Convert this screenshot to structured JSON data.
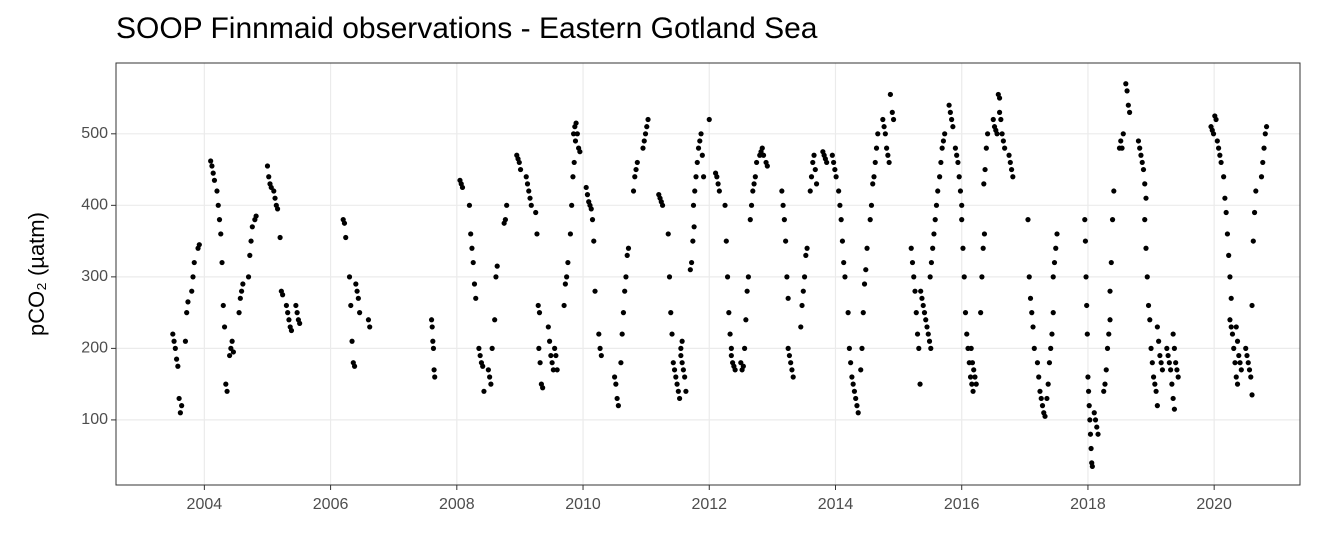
{
  "chart_data": {
    "type": "scatter",
    "title": "SOOP Finnmaid observations - Eastern Gotland Sea",
    "y_label": "pCO₂ (µatm)",
    "color": "#000000",
    "grid": true,
    "xlim": [
      2002.6,
      2021.36
    ],
    "xticks": [
      2004,
      2006,
      2008,
      2010,
      2012,
      2014,
      2016,
      2018,
      2020
    ],
    "ylim": [
      9,
      599
    ],
    "yticks": [
      100,
      200,
      300,
      400,
      500
    ],
    "x": [
      2003.5,
      2003.52,
      2003.54,
      2003.56,
      2003.58,
      2003.6,
      2003.62,
      2003.64,
      2003.7,
      2003.72,
      2003.74,
      2003.8,
      2003.82,
      2003.84,
      2003.9,
      2003.92,
      2004.1,
      2004.12,
      2004.14,
      2004.16,
      2004.2,
      2004.22,
      2004.24,
      2004.26,
      2004.28,
      2004.3,
      2004.32,
      2004.34,
      2004.36,
      2004.4,
      2004.42,
      2004.44,
      2004.46,
      2004.55,
      2004.57,
      2004.59,
      2004.61,
      2004.7,
      2004.72,
      2004.74,
      2004.76,
      2004.8,
      2004.82,
      2005.0,
      2005.02,
      2005.04,
      2005.06,
      2005.1,
      2005.12,
      2005.14,
      2005.16,
      2005.2,
      2005.22,
      2005.24,
      2005.3,
      2005.32,
      2005.34,
      2005.36,
      2005.38,
      2005.45,
      2005.47,
      2005.49,
      2005.51,
      2006.2,
      2006.22,
      2006.24,
      2006.3,
      2006.32,
      2006.34,
      2006.36,
      2006.38,
      2006.4,
      2006.42,
      2006.44,
      2006.46,
      2006.6,
      2006.62,
      2007.6,
      2007.61,
      2007.62,
      2007.63,
      2007.64,
      2007.65,
      2008.05,
      2008.07,
      2008.09,
      2008.2,
      2008.22,
      2008.24,
      2008.26,
      2008.28,
      2008.3,
      2008.35,
      2008.37,
      2008.39,
      2008.41,
      2008.43,
      2008.5,
      2008.52,
      2008.54,
      2008.56,
      2008.6,
      2008.62,
      2008.64,
      2008.75,
      2008.77,
      2008.79,
      2008.95,
      2008.97,
      2008.99,
      2009.01,
      2009.1,
      2009.12,
      2009.14,
      2009.16,
      2009.18,
      2009.25,
      2009.27,
      2009.29,
      2009.31,
      2009.3,
      2009.32,
      2009.34,
      2009.36,
      2009.45,
      2009.47,
      2009.49,
      2009.51,
      2009.53,
      2009.55,
      2009.57,
      2009.59,
      2009.7,
      2009.72,
      2009.74,
      2009.76,
      2009.8,
      2009.82,
      2009.84,
      2009.86,
      2009.88,
      2009.85,
      2009.87,
      2009.89,
      2009.91,
      2009.93,
      2009.95,
      2010.05,
      2010.07,
      2010.09,
      2010.11,
      2010.13,
      2010.15,
      2010.17,
      2010.19,
      2010.25,
      2010.27,
      2010.29,
      2010.5,
      2010.52,
      2010.54,
      2010.56,
      2010.6,
      2010.62,
      2010.64,
      2010.66,
      2010.68,
      2010.7,
      2010.72,
      2010.8,
      2010.82,
      2010.84,
      2010.86,
      2010.95,
      2010.97,
      2010.99,
      2011.01,
      2011.03,
      2011.2,
      2011.22,
      2011.24,
      2011.26,
      2011.35,
      2011.37,
      2011.39,
      2011.41,
      2011.43,
      2011.45,
      2011.47,
      2011.49,
      2011.51,
      2011.53,
      2011.55,
      2011.57,
      2011.55,
      2011.57,
      2011.59,
      2011.61,
      2011.63,
      2011.7,
      2011.72,
      2011.74,
      2011.76,
      2011.75,
      2011.77,
      2011.79,
      2011.81,
      2011.83,
      2011.85,
      2011.87,
      2011.89,
      2011.91,
      2012.0,
      2012.1,
      2012.12,
      2012.14,
      2012.16,
      2012.25,
      2012.27,
      2012.29,
      2012.31,
      2012.33,
      2012.35,
      2012.35,
      2012.37,
      2012.39,
      2012.41,
      2012.5,
      2012.52,
      2012.54,
      2012.56,
      2012.58,
      2012.6,
      2012.62,
      2012.65,
      2012.67,
      2012.69,
      2012.71,
      2012.73,
      2012.75,
      2012.8,
      2012.82,
      2012.84,
      2012.86,
      2012.9,
      2012.92,
      2013.15,
      2013.17,
      2013.19,
      2013.21,
      2013.23,
      2013.25,
      2013.25,
      2013.27,
      2013.29,
      2013.31,
      2013.33,
      2013.45,
      2013.47,
      2013.49,
      2013.51,
      2013.53,
      2013.55,
      2013.6,
      2013.62,
      2013.64,
      2013.66,
      2013.68,
      2013.7,
      2013.8,
      2013.82,
      2013.84,
      2013.86,
      2013.95,
      2013.97,
      2013.99,
      2014.01,
      2014.05,
      2014.07,
      2014.09,
      2014.11,
      2014.13,
      2014.15,
      2014.2,
      2014.22,
      2014.24,
      2014.26,
      2014.28,
      2014.3,
      2014.32,
      2014.34,
      2014.36,
      2014.4,
      2014.42,
      2014.44,
      2014.46,
      2014.48,
      2014.5,
      2014.55,
      2014.57,
      2014.59,
      2014.61,
      2014.63,
      2014.65,
      2014.67,
      2014.75,
      2014.77,
      2014.79,
      2014.81,
      2014.83,
      2014.85,
      2014.87,
      2014.9,
      2014.92,
      2015.2,
      2015.22,
      2015.24,
      2015.26,
      2015.28,
      2015.3,
      2015.32,
      2015.34,
      2015.35,
      2015.37,
      2015.39,
      2015.41,
      2015.43,
      2015.45,
      2015.47,
      2015.49,
      2015.51,
      2015.5,
      2015.52,
      2015.54,
      2015.56,
      2015.58,
      2015.6,
      2015.62,
      2015.65,
      2015.67,
      2015.69,
      2015.71,
      2015.73,
      2015.8,
      2015.82,
      2015.84,
      2015.86,
      2015.9,
      2015.92,
      2015.94,
      2015.96,
      2015.98,
      2016.0,
      2016.0,
      2016.02,
      2016.04,
      2016.06,
      2016.08,
      2016.1,
      2016.12,
      2016.14,
      2016.16,
      2016.18,
      2016.15,
      2016.17,
      2016.19,
      2016.21,
      2016.23,
      2016.3,
      2016.32,
      2016.34,
      2016.36,
      2016.35,
      2016.37,
      2016.39,
      2016.41,
      2016.5,
      2016.52,
      2016.54,
      2016.56,
      2016.58,
      2016.6,
      2016.6,
      2016.62,
      2016.64,
      2016.66,
      2016.68,
      2016.75,
      2016.77,
      2016.79,
      2016.81,
      2017.05,
      2017.07,
      2017.09,
      2017.11,
      2017.13,
      2017.15,
      2017.2,
      2017.22,
      2017.24,
      2017.26,
      2017.28,
      2017.3,
      2017.32,
      2017.35,
      2017.37,
      2017.39,
      2017.41,
      2017.43,
      2017.45,
      2017.45,
      2017.47,
      2017.49,
      2017.51,
      2017.95,
      2017.96,
      2017.97,
      2017.98,
      2017.99,
      2018.0,
      2018.01,
      2018.02,
      2018.03,
      2018.04,
      2018.05,
      2018.06,
      2018.07,
      2018.1,
      2018.12,
      2018.14,
      2018.16,
      2018.25,
      2018.27,
      2018.29,
      2018.31,
      2018.33,
      2018.35,
      2018.35,
      2018.37,
      2018.39,
      2018.41,
      2018.5,
      2018.52,
      2018.54,
      2018.56,
      2018.6,
      2018.62,
      2018.64,
      2018.66,
      2018.8,
      2018.82,
      2018.84,
      2018.86,
      2018.88,
      2018.9,
      2018.92,
      2018.9,
      2018.92,
      2018.94,
      2018.96,
      2018.98,
      2019.0,
      2019.02,
      2019.04,
      2019.06,
      2019.08,
      2019.1,
      2019.1,
      2019.12,
      2019.14,
      2019.16,
      2019.18,
      2019.25,
      2019.27,
      2019.29,
      2019.31,
      2019.33,
      2019.35,
      2019.37,
      2019.35,
      2019.37,
      2019.39,
      2019.41,
      2019.43,
      2019.95,
      2019.97,
      2019.99,
      2020.01,
      2020.03,
      2020.05,
      2020.07,
      2020.09,
      2020.11,
      2020.15,
      2020.17,
      2020.19,
      2020.21,
      2020.23,
      2020.25,
      2020.27,
      2020.25,
      2020.27,
      2020.29,
      2020.31,
      2020.33,
      2020.35,
      2020.37,
      2020.35,
      2020.37,
      2020.39,
      2020.41,
      2020.43,
      2020.5,
      2020.52,
      2020.54,
      2020.56,
      2020.58,
      2020.6,
      2020.6,
      2020.62,
      2020.64,
      2020.66,
      2020.75,
      2020.77,
      2020.79,
      2020.81,
      2020.83
    ],
    "values": [
      220,
      210,
      200,
      185,
      175,
      130,
      110,
      120,
      210,
      250,
      265,
      280,
      300,
      320,
      340,
      345,
      462,
      455,
      445,
      435,
      420,
      400,
      380,
      360,
      320,
      260,
      230,
      150,
      140,
      190,
      200,
      210,
      195,
      250,
      270,
      280,
      290,
      300,
      330,
      350,
      370,
      380,
      385,
      455,
      440,
      430,
      425,
      420,
      410,
      400,
      395,
      355,
      280,
      275,
      260,
      250,
      240,
      230,
      225,
      260,
      250,
      240,
      235,
      380,
      375,
      355,
      300,
      260,
      210,
      180,
      175,
      290,
      280,
      270,
      250,
      240,
      230,
      240,
      230,
      210,
      200,
      170,
      160,
      435,
      430,
      425,
      400,
      360,
      340,
      320,
      290,
      270,
      200,
      190,
      180,
      175,
      140,
      170,
      160,
      150,
      200,
      240,
      300,
      315,
      375,
      380,
      400,
      470,
      465,
      460,
      450,
      440,
      430,
      420,
      410,
      400,
      390,
      360,
      260,
      250,
      200,
      180,
      150,
      145,
      230,
      210,
      190,
      180,
      170,
      200,
      190,
      170,
      260,
      290,
      300,
      320,
      360,
      400,
      440,
      460,
      490,
      500,
      510,
      515,
      500,
      480,
      475,
      425,
      415,
      405,
      400,
      395,
      380,
      350,
      280,
      220,
      200,
      190,
      160,
      150,
      130,
      120,
      180,
      220,
      250,
      280,
      300,
      330,
      340,
      420,
      440,
      450,
      460,
      480,
      490,
      500,
      510,
      520,
      415,
      410,
      405,
      400,
      360,
      300,
      250,
      220,
      180,
      170,
      160,
      150,
      140,
      130,
      190,
      210,
      200,
      180,
      170,
      160,
      140,
      310,
      320,
      350,
      370,
      400,
      420,
      440,
      460,
      480,
      490,
      500,
      470,
      440,
      520,
      445,
      440,
      430,
      420,
      400,
      350,
      300,
      250,
      220,
      200,
      190,
      180,
      175,
      170,
      180,
      170,
      175,
      200,
      240,
      280,
      300,
      380,
      400,
      420,
      430,
      440,
      460,
      470,
      475,
      480,
      470,
      460,
      455,
      420,
      400,
      380,
      350,
      300,
      270,
      200,
      190,
      180,
      170,
      160,
      230,
      260,
      280,
      300,
      330,
      340,
      420,
      440,
      460,
      470,
      450,
      430,
      475,
      470,
      465,
      460,
      470,
      460,
      450,
      440,
      420,
      400,
      380,
      350,
      320,
      300,
      250,
      200,
      180,
      160,
      150,
      140,
      130,
      120,
      110,
      170,
      200,
      250,
      290,
      310,
      340,
      380,
      400,
      430,
      440,
      460,
      480,
      500,
      520,
      510,
      500,
      480,
      470,
      460,
      555,
      530,
      520,
      340,
      320,
      300,
      280,
      250,
      220,
      200,
      150,
      280,
      270,
      260,
      250,
      240,
      230,
      220,
      210,
      200,
      300,
      320,
      340,
      360,
      380,
      400,
      420,
      440,
      460,
      480,
      490,
      500,
      540,
      530,
      520,
      510,
      480,
      470,
      460,
      440,
      420,
      400,
      380,
      340,
      300,
      250,
      220,
      200,
      180,
      160,
      150,
      140,
      200,
      180,
      170,
      160,
      150,
      250,
      300,
      340,
      360,
      430,
      450,
      480,
      500,
      520,
      510,
      505,
      500,
      555,
      550,
      530,
      520,
      500,
      490,
      480,
      470,
      460,
      450,
      440,
      380,
      300,
      270,
      250,
      230,
      200,
      180,
      160,
      140,
      130,
      120,
      110,
      105,
      130,
      150,
      180,
      200,
      220,
      250,
      300,
      320,
      340,
      360,
      380,
      350,
      300,
      260,
      220,
      160,
      140,
      120,
      100,
      80,
      60,
      40,
      35,
      110,
      100,
      90,
      80,
      140,
      150,
      170,
      200,
      220,
      240,
      280,
      320,
      380,
      420,
      480,
      490,
      480,
      500,
      570,
      560,
      540,
      530,
      490,
      480,
      470,
      460,
      450,
      430,
      410,
      380,
      340,
      300,
      260,
      240,
      200,
      180,
      160,
      150,
      140,
      120,
      230,
      210,
      190,
      180,
      170,
      200,
      190,
      180,
      170,
      150,
      130,
      115,
      220,
      200,
      180,
      170,
      160,
      510,
      505,
      500,
      525,
      520,
      490,
      480,
      470,
      460,
      440,
      410,
      390,
      360,
      330,
      300,
      270,
      240,
      230,
      220,
      200,
      180,
      160,
      150,
      230,
      210,
      190,
      180,
      170,
      200,
      190,
      180,
      170,
      160,
      135,
      260,
      350,
      390,
      420,
      440,
      460,
      480,
      500,
      510
    ]
  }
}
